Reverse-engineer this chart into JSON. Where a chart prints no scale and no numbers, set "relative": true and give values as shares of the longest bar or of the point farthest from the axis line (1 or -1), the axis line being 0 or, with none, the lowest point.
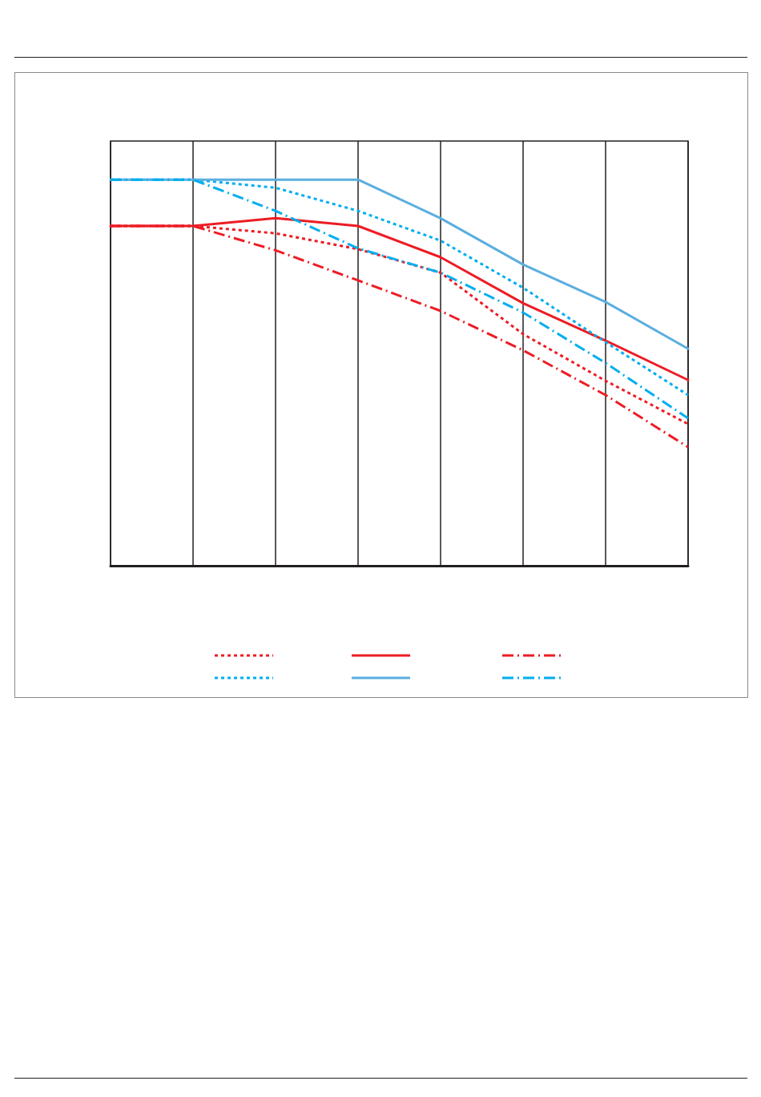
{
  "chart_data": {
    "type": "line",
    "relative": true,
    "grid": true,
    "marker": "none",
    "categories": [
      null,
      null,
      null,
      null,
      null,
      null,
      null,
      null
    ],
    "series": [
      {
        "color": "#ed1c24",
        "line_style": "dotted",
        "values": [
          0.88,
          0.88,
          0.861,
          0.82,
          0.759,
          0.6,
          0.479,
          0.367
        ]
      },
      {
        "color": "#ed1c24",
        "line_style": "solid",
        "values": [
          0.88,
          0.88,
          0.9,
          0.88,
          0.799,
          0.68,
          0.583,
          0.481
        ]
      },
      {
        "color": "#ed1c24",
        "line_style": "dashed",
        "values": [
          0.88,
          0.88,
          0.817,
          0.739,
          0.66,
          0.558,
          0.442,
          0.307
        ]
      },
      {
        "color": "#00aeef",
        "line_style": "dotted",
        "values": [
          1,
          1,
          0.979,
          0.919,
          0.842,
          0.72,
          0.579,
          0.442
        ]
      },
      {
        "color": "#5aaee0",
        "line_style": "solid",
        "values": [
          1,
          1,
          1,
          1,
          0.9,
          0.78,
          0.683,
          0.562
        ]
      },
      {
        "color": "#00aeef",
        "line_style": "dashed",
        "values": [
          1,
          1,
          0.919,
          0.822,
          0.759,
          0.656,
          0.525,
          0.382
        ]
      }
    ]
  }
}
